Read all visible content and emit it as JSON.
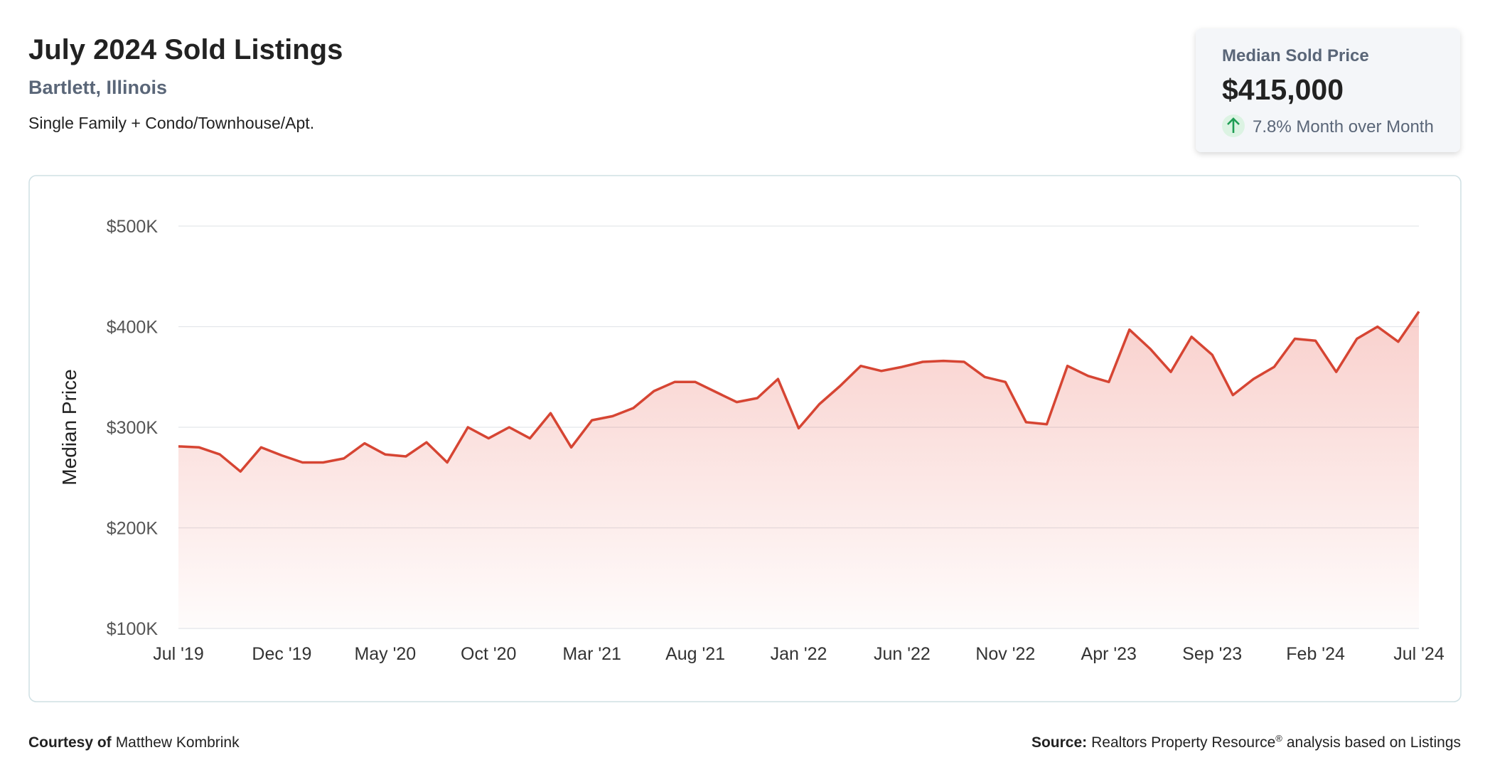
{
  "header": {
    "title": "July 2024 Sold Listings",
    "location": "Bartlett, Illinois",
    "property_types": "Single Family + Condo/Townhouse/Apt."
  },
  "summary_card": {
    "label": "Median Sold Price",
    "value": "$415,000",
    "change": "7.8% Month over Month"
  },
  "chart_data": {
    "type": "line",
    "ylabel": "Median Price",
    "categories": [
      "Jul '19",
      null,
      null,
      null,
      null,
      "Dec '19",
      null,
      null,
      null,
      null,
      "May '20",
      null,
      null,
      null,
      null,
      "Oct '20",
      null,
      null,
      null,
      null,
      "Mar '21",
      null,
      null,
      null,
      null,
      "Aug '21",
      null,
      null,
      null,
      null,
      "Jan '22",
      null,
      null,
      null,
      null,
      "Jun '22",
      null,
      null,
      null,
      null,
      "Nov '22",
      null,
      null,
      null,
      null,
      "Apr '23",
      null,
      null,
      null,
      null,
      "Sep '23",
      null,
      null,
      null,
      null,
      "Feb '24",
      null,
      null,
      null,
      null,
      "Jul '24"
    ],
    "series": [
      {
        "color": "#d64533",
        "values": [
          281000,
          280000,
          273000,
          256000,
          280000,
          272000,
          265000,
          265000,
          269000,
          284000,
          273000,
          271000,
          285000,
          265000,
          300000,
          289000,
          300000,
          289000,
          314000,
          280000,
          307000,
          311000,
          319000,
          336000,
          345000,
          345000,
          335000,
          325000,
          329000,
          348000,
          299000,
          323000,
          341000,
          361000,
          356000,
          360000,
          365000,
          366000,
          365000,
          350000,
          345000,
          305000,
          303000,
          361000,
          351000,
          345000,
          397000,
          378000,
          355000,
          390000,
          372000,
          332000,
          348000,
          360000,
          388000,
          386000,
          355000,
          388000,
          400000,
          385000,
          415000
        ]
      }
    ],
    "ylim": [
      100000,
      500000
    ],
    "yticks": [
      {
        "value": 100000,
        "label": "$100K"
      },
      {
        "value": 200000,
        "label": "$200K"
      },
      {
        "value": 300000,
        "label": "$300K"
      },
      {
        "value": 400000,
        "label": "$400K"
      },
      {
        "value": 500000,
        "label": "$500K"
      }
    ],
    "grid": true
  },
  "footer": {
    "courtesy_label": "Courtesy of",
    "courtesy_name": "Matthew Kombrink",
    "source_label": "Source:",
    "source_name": "Realtors Property Resource",
    "source_mark": "®",
    "source_rest": "analysis based on Listings"
  }
}
